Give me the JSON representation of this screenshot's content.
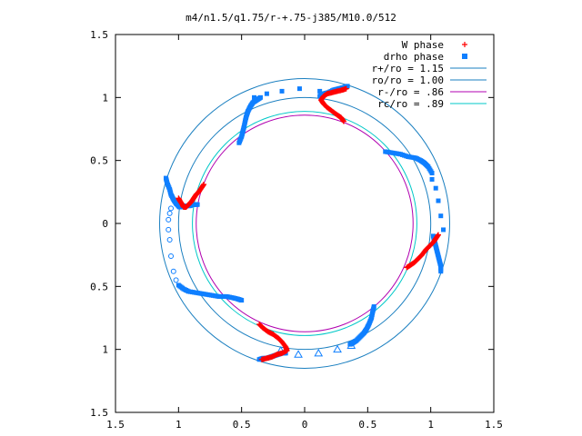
{
  "chart_data": {
    "type": "scatter",
    "title": "m4/n1.5/q1.75/r-+.75-j385/M10.0/512",
    "xlim": [
      -1.5,
      1.5
    ],
    "ylim": [
      -1.5,
      1.5
    ],
    "x_ticks": [
      {
        "value": -1.5,
        "label": "1.5"
      },
      {
        "value": -1.0,
        "label": "1"
      },
      {
        "value": -0.5,
        "label": "0.5"
      },
      {
        "value": 0,
        "label": "0"
      },
      {
        "value": 0.5,
        "label": "0.5"
      },
      {
        "value": 1.0,
        "label": "1"
      },
      {
        "value": 1.5,
        "label": "1.5"
      }
    ],
    "y_ticks": [
      {
        "value": 1.5,
        "label": "1.5"
      },
      {
        "value": 1.0,
        "label": "1"
      },
      {
        "value": 0.5,
        "label": "0.5"
      },
      {
        "value": 0,
        "label": "0"
      },
      {
        "value": -0.5,
        "label": "0.5"
      },
      {
        "value": -1.0,
        "label": "1"
      },
      {
        "value": -1.5,
        "label": "1.5"
      }
    ],
    "grid": false,
    "legend_position": "top-right",
    "legend": [
      {
        "label": "W phase",
        "kind": "plus",
        "color": "#ff0000"
      },
      {
        "label": "drho phase",
        "kind": "square",
        "color": "#0f7fff"
      },
      {
        "label": "r+/ro = 1.15",
        "kind": "line",
        "color": "#1a7fc0"
      },
      {
        "label": "ro/ro = 1.00",
        "kind": "line",
        "color": "#1a7fc0"
      },
      {
        "label": "r-/ro = .86",
        "kind": "line",
        "color": "#b000b0"
      },
      {
        "label": "rc/ro = .89",
        "kind": "line",
        "color": "#00c8c8"
      }
    ],
    "circles": [
      {
        "radius": 1.15,
        "color": "#1a7fc0"
      },
      {
        "radius": 1.0,
        "color": "#1a7fc0"
      },
      {
        "radius": 0.86,
        "color": "#b000b0"
      },
      {
        "radius": 0.89,
        "color": "#00c8c8"
      }
    ],
    "w_phase_segments": [
      {
        "x": [
          0.33,
          0.3,
          0.26,
          0.22,
          0.18,
          0.15,
          0.13,
          0.15,
          0.18,
          0.22,
          0.26,
          0.29,
          0.31
        ],
        "y": [
          1.07,
          1.06,
          1.05,
          1.04,
          1.03,
          1.01,
          0.98,
          0.95,
          0.92,
          0.89,
          0.86,
          0.84,
          0.81
        ]
      },
      {
        "x": [
          1.06,
          1.04,
          1.02,
          0.99,
          0.96,
          0.93,
          0.9,
          0.87,
          0.84,
          0.81
        ],
        "y": [
          -0.09,
          -0.12,
          -0.15,
          -0.18,
          -0.21,
          -0.25,
          -0.28,
          -0.31,
          -0.33,
          -0.35
        ]
      },
      {
        "x": [
          -0.36,
          -0.33,
          -0.29,
          -0.25,
          -0.21,
          -0.18,
          -0.15,
          -0.14,
          -0.18,
          -0.22,
          -0.26,
          -0.3,
          -0.34
        ],
        "y": [
          -0.8,
          -0.83,
          -0.86,
          -0.88,
          -0.91,
          -0.94,
          -0.98,
          -1.01,
          -1.03,
          -1.04,
          -1.06,
          -1.07,
          -1.08
        ]
      },
      {
        "x": [
          -1.0,
          -0.99,
          -0.97,
          -0.96,
          -0.94,
          -0.92,
          -0.9,
          -0.88,
          -0.86,
          -0.84,
          -0.82,
          -0.8
        ],
        "y": [
          0.2,
          0.18,
          0.15,
          0.13,
          0.13,
          0.15,
          0.17,
          0.2,
          0.23,
          0.25,
          0.28,
          0.31
        ]
      }
    ],
    "drho_phase_segments": [
      {
        "x": [
          -1.1,
          -1.09,
          -1.07,
          -1.06,
          -1.04,
          -1.02,
          -1.0,
          -0.99,
          -0.97,
          -0.95,
          -0.93,
          -0.91,
          -0.89,
          -0.87,
          -0.85
        ],
        "y": [
          0.36,
          0.32,
          0.27,
          0.23,
          0.19,
          0.16,
          0.14,
          0.13,
          0.13,
          0.14,
          0.14,
          0.14,
          0.15,
          0.15,
          0.15
        ]
      },
      {
        "x": [
          -1.0,
          -0.96,
          -0.92,
          -0.86,
          -0.8,
          -0.74,
          -0.68,
          -0.62,
          -0.57,
          -0.53,
          -0.5
        ],
        "y": [
          -0.49,
          -0.52,
          -0.54,
          -0.55,
          -0.56,
          -0.57,
          -0.58,
          -0.58,
          -0.59,
          -0.6,
          -0.61
        ]
      },
      {
        "x": [
          -0.52,
          -0.5,
          -0.49,
          -0.48,
          -0.47,
          -0.46,
          -0.45,
          -0.43,
          -0.41,
          -0.38,
          -0.35
        ],
        "y": [
          0.64,
          0.69,
          0.73,
          0.77,
          0.82,
          0.86,
          0.89,
          0.93,
          0.96,
          0.98,
          1.0
        ]
      },
      {
        "x": [
          0.12,
          0.15,
          0.19,
          0.23,
          0.27,
          0.31,
          0.34
        ],
        "y": [
          1.01,
          1.03,
          1.04,
          1.06,
          1.07,
          1.08,
          1.09
        ]
      },
      {
        "x": [
          0.64,
          0.7,
          0.76,
          0.82,
          0.88,
          0.92,
          0.95,
          0.98,
          1.01
        ],
        "y": [
          0.57,
          0.56,
          0.55,
          0.53,
          0.52,
          0.5,
          0.48,
          0.45,
          0.4
        ]
      },
      {
        "x": [
          1.02,
          1.03,
          1.04,
          1.05,
          1.06,
          1.07,
          1.08,
          1.08
        ],
        "y": [
          -0.1,
          -0.14,
          -0.18,
          -0.22,
          -0.26,
          -0.3,
          -0.34,
          -0.38
        ]
      },
      {
        "x": [
          0.55,
          0.54,
          0.53,
          0.51,
          0.49,
          0.47,
          0.44,
          0.41,
          0.38,
          0.36
        ],
        "y": [
          -0.66,
          -0.7,
          -0.75,
          -0.8,
          -0.84,
          -0.87,
          -0.9,
          -0.93,
          -0.95,
          -0.96
        ]
      },
      {
        "x": [
          -0.36,
          -0.33,
          -0.3,
          -0.27,
          -0.24,
          -0.21,
          -0.18,
          -0.15
        ],
        "y": [
          -1.08,
          -1.07,
          -1.07,
          -1.06,
          -1.05,
          -1.04,
          -1.03,
          -1.03
        ]
      }
    ],
    "drho_sparse_squares": {
      "x": [
        -0.4,
        -0.3,
        -0.18,
        -0.04,
        0.12,
        1.01,
        1.04,
        1.06,
        1.08,
        1.1
      ],
      "y": [
        1.0,
        1.03,
        1.05,
        1.07,
        1.05,
        0.35,
        0.28,
        0.18,
        0.06,
        -0.05
      ]
    },
    "drho_open_circles": {
      "x": [
        -1.06,
        -1.07,
        -1.08,
        -1.08,
        -1.07,
        -1.06,
        -1.04,
        -1.02
      ],
      "y": [
        0.12,
        0.08,
        0.03,
        -0.05,
        -0.13,
        -0.26,
        -0.38,
        -0.45
      ]
    },
    "drho_open_triangles": {
      "x": [
        -0.19,
        -0.05,
        0.11,
        0.26,
        0.37
      ],
      "y": [
        -1.01,
        -1.04,
        -1.03,
        -1.0,
        -0.97
      ]
    }
  }
}
